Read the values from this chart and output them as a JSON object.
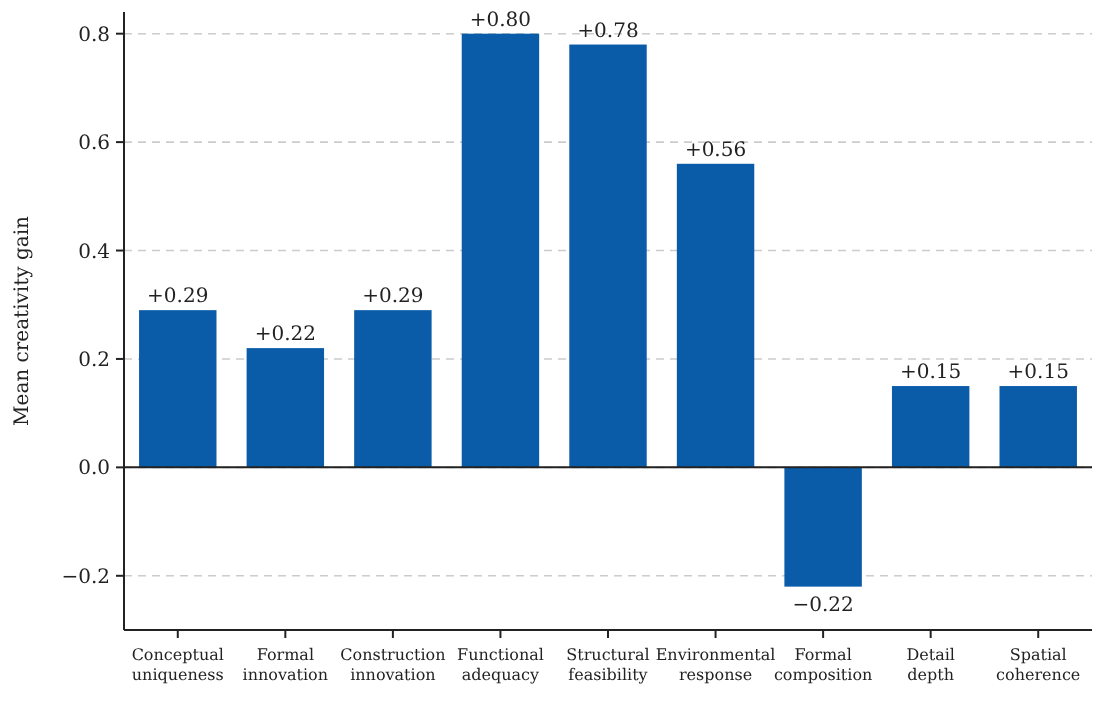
{
  "chart_data": {
    "type": "bar",
    "ylabel": "Mean creativity gain",
    "categories": [
      "Conceptual uniqueness",
      "Formal innovation",
      "Construction innovation",
      "Functional adequacy",
      "Structural feasibility",
      "Environmental response",
      "Formal composition",
      "Detail depth",
      "Spatial coherence"
    ],
    "values": [
      0.29,
      0.22,
      0.29,
      0.8,
      0.78,
      0.56,
      -0.22,
      0.15,
      0.15
    ],
    "value_labels": [
      "+0.29",
      "+0.22",
      "+0.29",
      "+0.80",
      "+0.78",
      "+0.56",
      "−0.22",
      "+0.15",
      "+0.15"
    ],
    "color": "#0a5ca8",
    "ylim": [
      -0.3,
      0.84
    ],
    "yticks": [
      {
        "value": -0.2,
        "label": "−0.2"
      },
      {
        "value": 0,
        "label": "0.0"
      },
      {
        "value": 0.2,
        "label": "0.2"
      },
      {
        "value": 0.4,
        "label": "0.4"
      },
      {
        "value": 0.6,
        "label": "0.6"
      },
      {
        "value": 0.8,
        "label": "0.8"
      }
    ],
    "grid": "y",
    "ref_lines": [
      {
        "axis": "y",
        "value": 0,
        "color": "#222222"
      }
    ]
  }
}
